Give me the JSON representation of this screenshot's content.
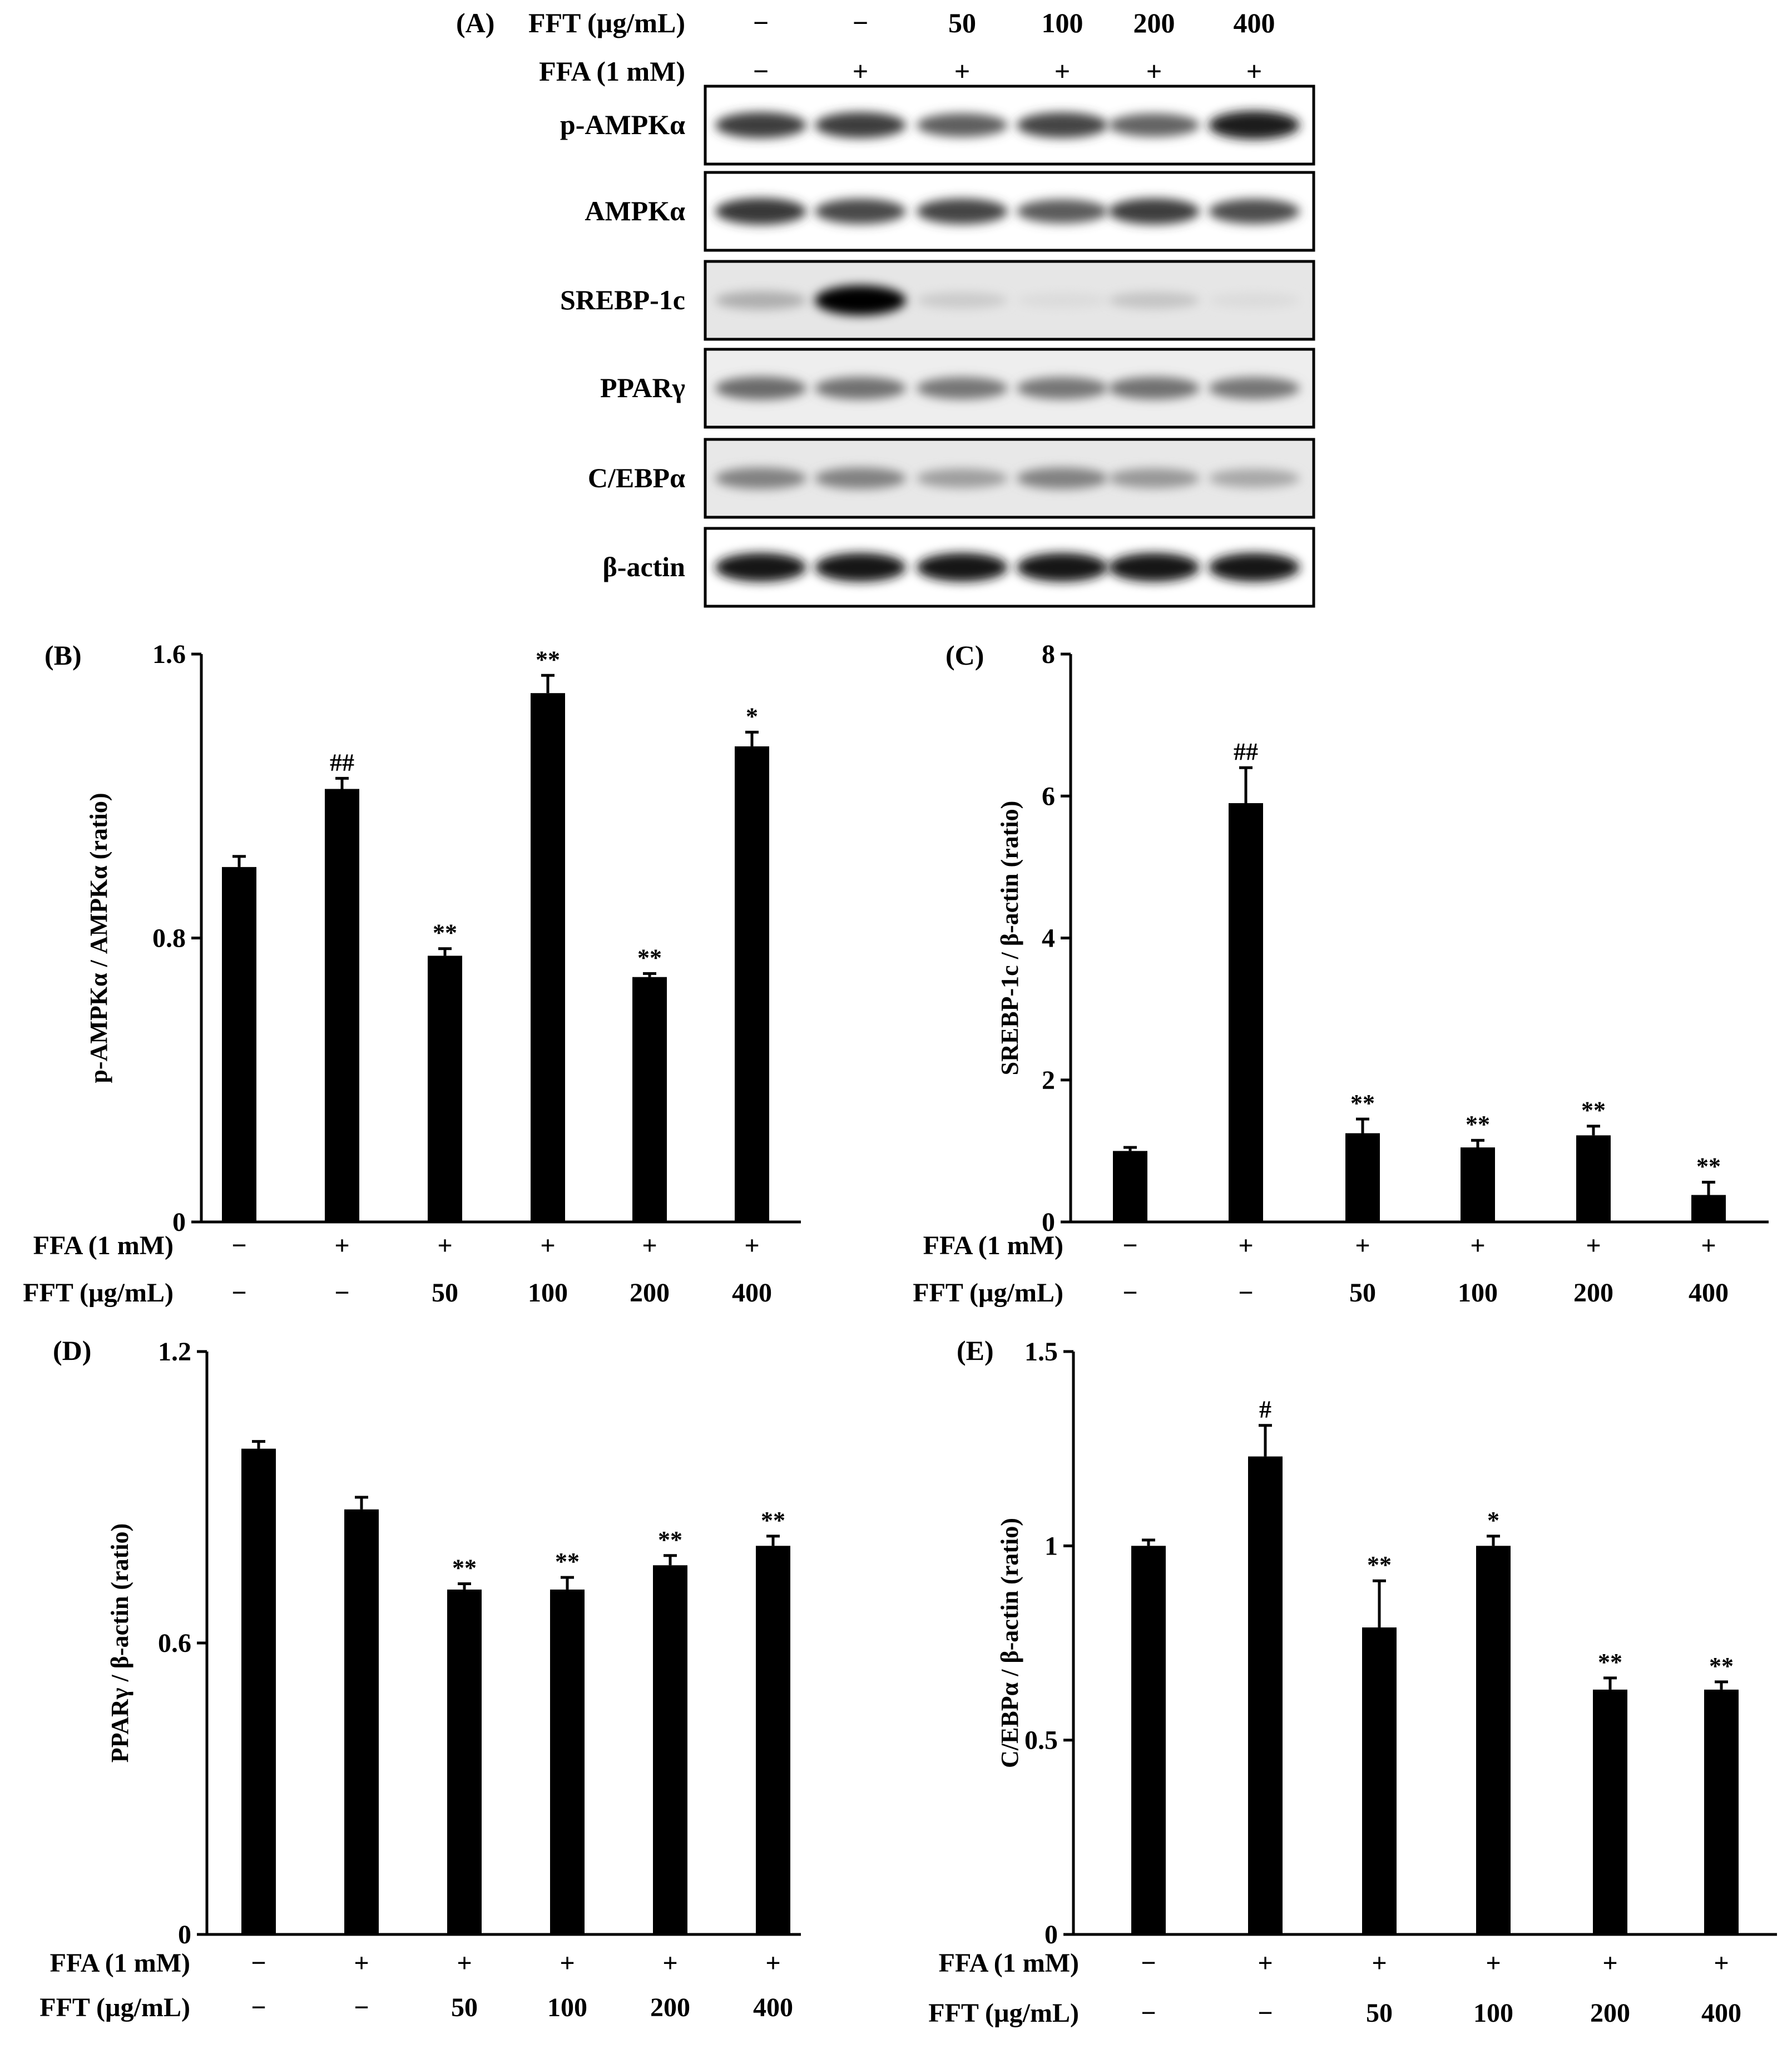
{
  "panel_a": {
    "label": "(A)",
    "header_rows": [
      {
        "title": "FFT (µg/mL)",
        "values": [
          "−",
          "−",
          "50",
          "100",
          "200",
          "400"
        ]
      },
      {
        "title": "FFA (1 mM)",
        "values": [
          "−",
          "+",
          "+",
          "+",
          "+",
          "+"
        ]
      }
    ],
    "blots": [
      {
        "label": "p-AMPKα",
        "background": "#ffffff",
        "bands": [
          0.75,
          0.75,
          0.6,
          0.72,
          0.58,
          0.9
        ]
      },
      {
        "label": "AMPKα",
        "background": "#ffffff",
        "bands": [
          0.78,
          0.7,
          0.72,
          0.62,
          0.75,
          0.68
        ]
      },
      {
        "label": "SREBP-1c",
        "background": "#e6e6e6",
        "bands": [
          0.25,
          1.0,
          0.12,
          0.05,
          0.15,
          0.05
        ]
      },
      {
        "label": "PPARγ",
        "background": "#eeeeee",
        "bands": [
          0.55,
          0.52,
          0.5,
          0.5,
          0.52,
          0.5
        ]
      },
      {
        "label": "C/EBPα",
        "background": "#e8e8e8",
        "bands": [
          0.45,
          0.45,
          0.32,
          0.45,
          0.35,
          0.28
        ]
      },
      {
        "label": "β-actin",
        "background": "#ffffff",
        "bands": [
          0.92,
          0.92,
          0.92,
          0.92,
          0.92,
          0.92
        ]
      }
    ]
  },
  "chart_data": [
    {
      "panel": "(B)",
      "type": "bar",
      "ylabel": "p-AMPKα / AMPKα (ratio)",
      "ylim": [
        0,
        1.6
      ],
      "yticks": [
        "0",
        "0.8",
        "1.6"
      ],
      "ytick_values": [
        0,
        0.8,
        1.6
      ],
      "values": [
        1.0,
        1.22,
        0.75,
        1.49,
        0.69,
        1.34
      ],
      "errors": [
        0.03,
        0.03,
        0.02,
        0.05,
        0.01,
        0.04
      ],
      "significance": [
        "",
        "##",
        "**",
        "**",
        "**",
        "*"
      ],
      "conditions": [
        {
          "title": "FFA (1 mM)",
          "values": [
            "−",
            "+",
            "+",
            "+",
            "+",
            "+"
          ]
        },
        {
          "title": "FFT (µg/mL)",
          "values": [
            "−",
            "−",
            "50",
            "100",
            "200",
            "400"
          ]
        }
      ]
    },
    {
      "panel": "(C)",
      "type": "bar",
      "ylabel": "SREBP-1c / β-actin (ratio)",
      "ylim": [
        0,
        8
      ],
      "yticks": [
        "0",
        "2",
        "4",
        "6",
        "8"
      ],
      "ytick_values": [
        0,
        2,
        4,
        6,
        8
      ],
      "values": [
        1.0,
        5.9,
        1.25,
        1.05,
        1.22,
        0.38
      ],
      "errors": [
        0.05,
        0.5,
        0.2,
        0.1,
        0.13,
        0.18
      ],
      "significance": [
        "",
        "##",
        "**",
        "**",
        "**",
        "**"
      ],
      "conditions": [
        {
          "title": "FFA (1 mM)",
          "values": [
            "−",
            "+",
            "+",
            "+",
            "+",
            "+"
          ]
        },
        {
          "title": "FFT (µg/mL)",
          "values": [
            "−",
            "−",
            "50",
            "100",
            "200",
            "400"
          ]
        }
      ]
    },
    {
      "panel": "(D)",
      "type": "bar",
      "ylabel": "PPARγ / β-actin (ratio)",
      "ylim": [
        0,
        1.2
      ],
      "yticks": [
        "0",
        "0.6",
        "1.2"
      ],
      "ytick_values": [
        0,
        0.6,
        1.2
      ],
      "values": [
        1.0,
        0.875,
        0.71,
        0.71,
        0.76,
        0.8
      ],
      "errors": [
        0.015,
        0.025,
        0.012,
        0.025,
        0.02,
        0.02
      ],
      "significance": [
        "",
        "",
        "**",
        "**",
        "**",
        "**"
      ],
      "conditions": [
        {
          "title": "FFA (1 mM)",
          "values": [
            "−",
            "+",
            "+",
            "+",
            "+",
            "+"
          ]
        },
        {
          "title": "FFT (µg/mL)",
          "values": [
            "−",
            "−",
            "50",
            "100",
            "200",
            "400"
          ]
        }
      ]
    },
    {
      "panel": "(E)",
      "type": "bar",
      "ylabel": "C/EBPα / β-actin (ratio)",
      "ylim": [
        0,
        1.5
      ],
      "yticks": [
        "0",
        "0.5",
        "1",
        "1.5"
      ],
      "ytick_values": [
        0,
        0.5,
        1,
        1.5
      ],
      "values": [
        1.0,
        1.23,
        0.79,
        1.0,
        0.63,
        0.63
      ],
      "errors": [
        0.015,
        0.08,
        0.12,
        0.025,
        0.03,
        0.02
      ],
      "significance": [
        "",
        "#",
        "**",
        "*",
        "**",
        "**"
      ],
      "conditions": [
        {
          "title": "FFA (1 mM)",
          "values": [
            "−",
            "+",
            "+",
            "+",
            "+",
            "+"
          ]
        },
        {
          "title": "FFT (µg/mL)",
          "values": [
            "−",
            "−",
            "50",
            "100",
            "200",
            "400"
          ]
        }
      ]
    }
  ]
}
